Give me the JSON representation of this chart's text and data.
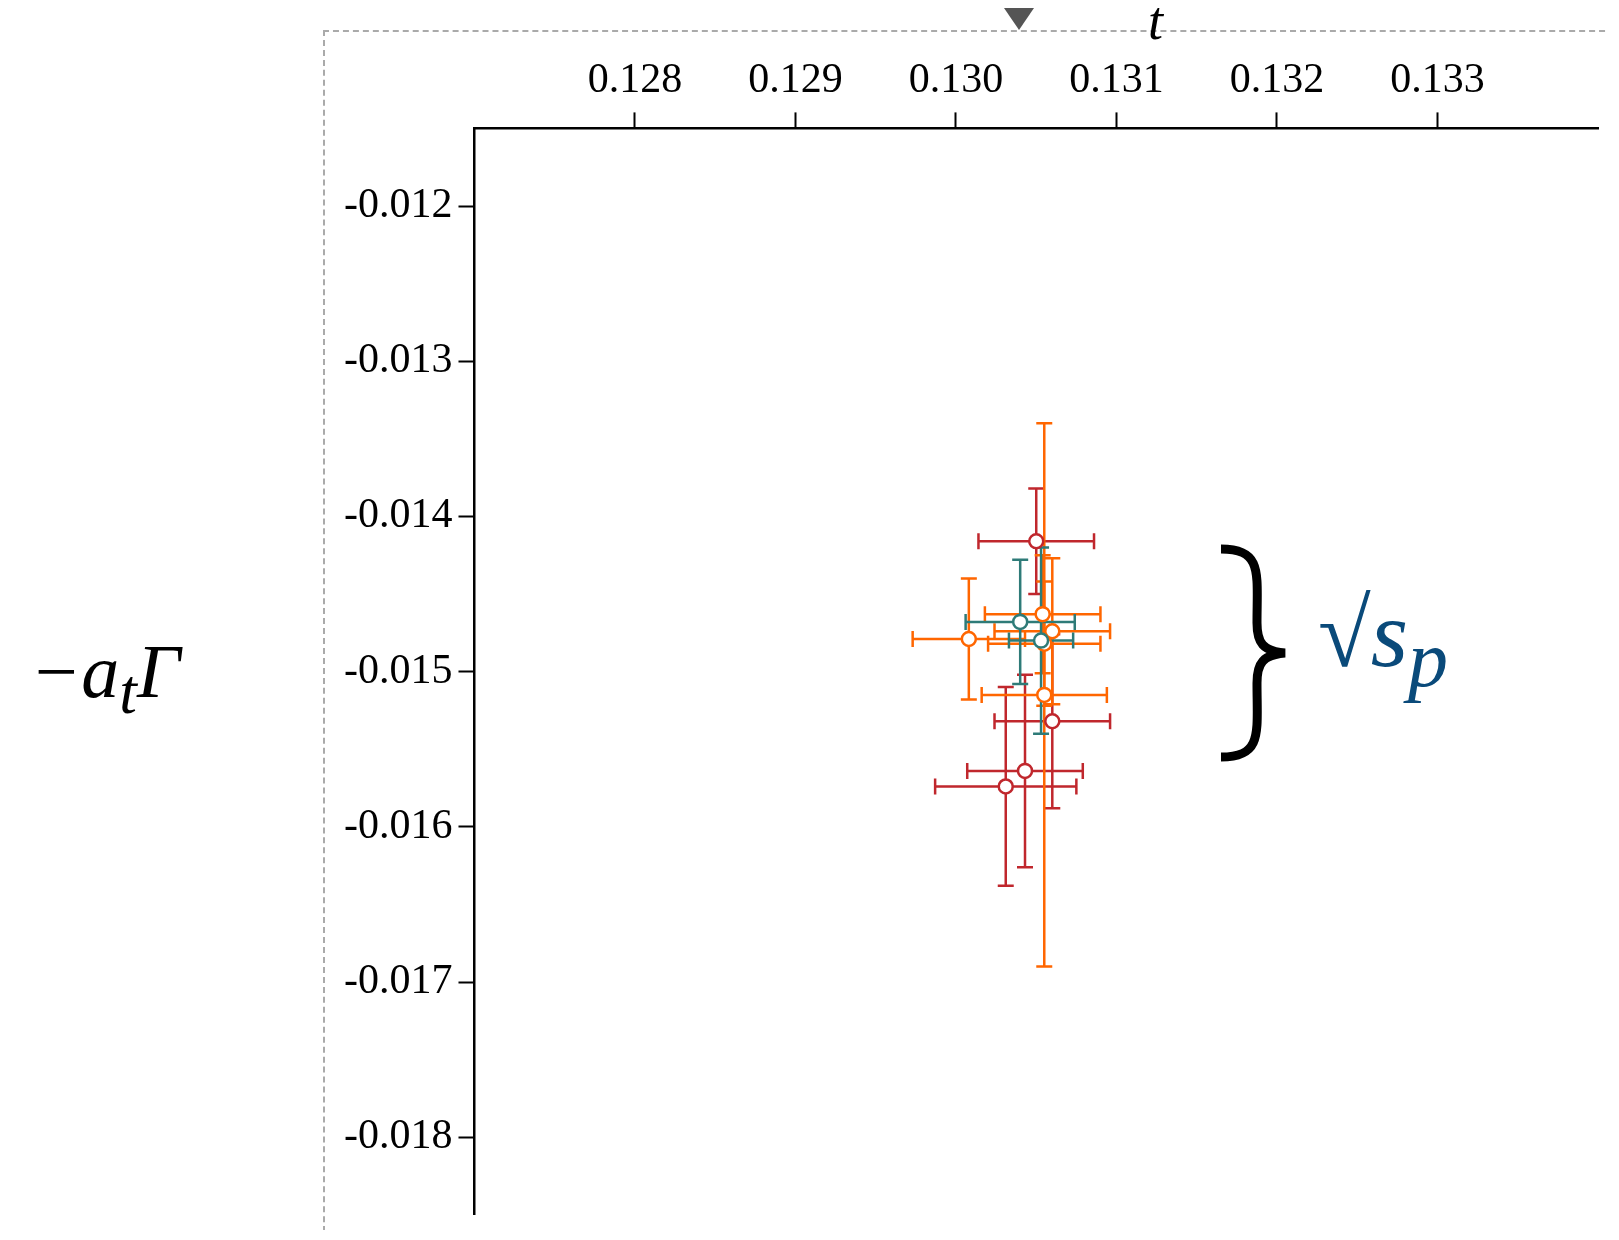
{
  "chart_data": {
    "type": "scatter",
    "xlabel": "t",
    "ylabel": "−a$_{t}$Γ",
    "annotations": [
      "√s$_{p}$"
    ],
    "xlim": [
      0.127,
      0.134
    ],
    "ylim": [
      -0.0185,
      -0.0115
    ],
    "xticks": [
      0.128,
      0.129,
      {
        "value": 0.13,
        "label": "0.130"
      },
      0.131,
      0.132,
      0.133
    ],
    "yticks": [
      -0.012,
      -0.013,
      -0.014,
      -0.015,
      -0.016,
      -0.017,
      -0.018
    ],
    "grid": false,
    "legend": false,
    "marker": "circle",
    "series": [
      {
        "color": "#c0272d",
        "x": [
          0.1305,
          0.1306,
          0.13043,
          0.13031
        ],
        "values": [
          -0.01416,
          -0.01532,
          -0.01564,
          -0.01574
        ],
        "xerrors": [
          0.00036,
          0.00036,
          0.00036,
          0.00044
        ],
        "errors": [
          0.00034,
          0.00056,
          0.00062,
          0.00064
        ]
      },
      {
        "color": "#ff6600",
        "x": [
          0.13008,
          0.13054,
          0.1306,
          0.13055,
          0.13055
        ],
        "values": [
          -0.01479,
          -0.01463,
          -0.01474,
          -0.01482,
          -0.01515
        ],
        "xerrors": [
          0.00035,
          0.00036,
          0.00036,
          0.00035,
          0.00039
        ],
        "errors": [
          0.00039,
          0.00038,
          0.00047,
          0.0004,
          0.00175
        ]
      },
      {
        "color": "#2e7b78",
        "x": [
          0.1304,
          0.13053
        ],
        "values": [
          -0.01468,
          -0.0148
        ],
        "xerrors": [
          0.00034,
          0.0002
        ],
        "errors": [
          0.0004,
          0.0006
        ]
      }
    ]
  }
}
